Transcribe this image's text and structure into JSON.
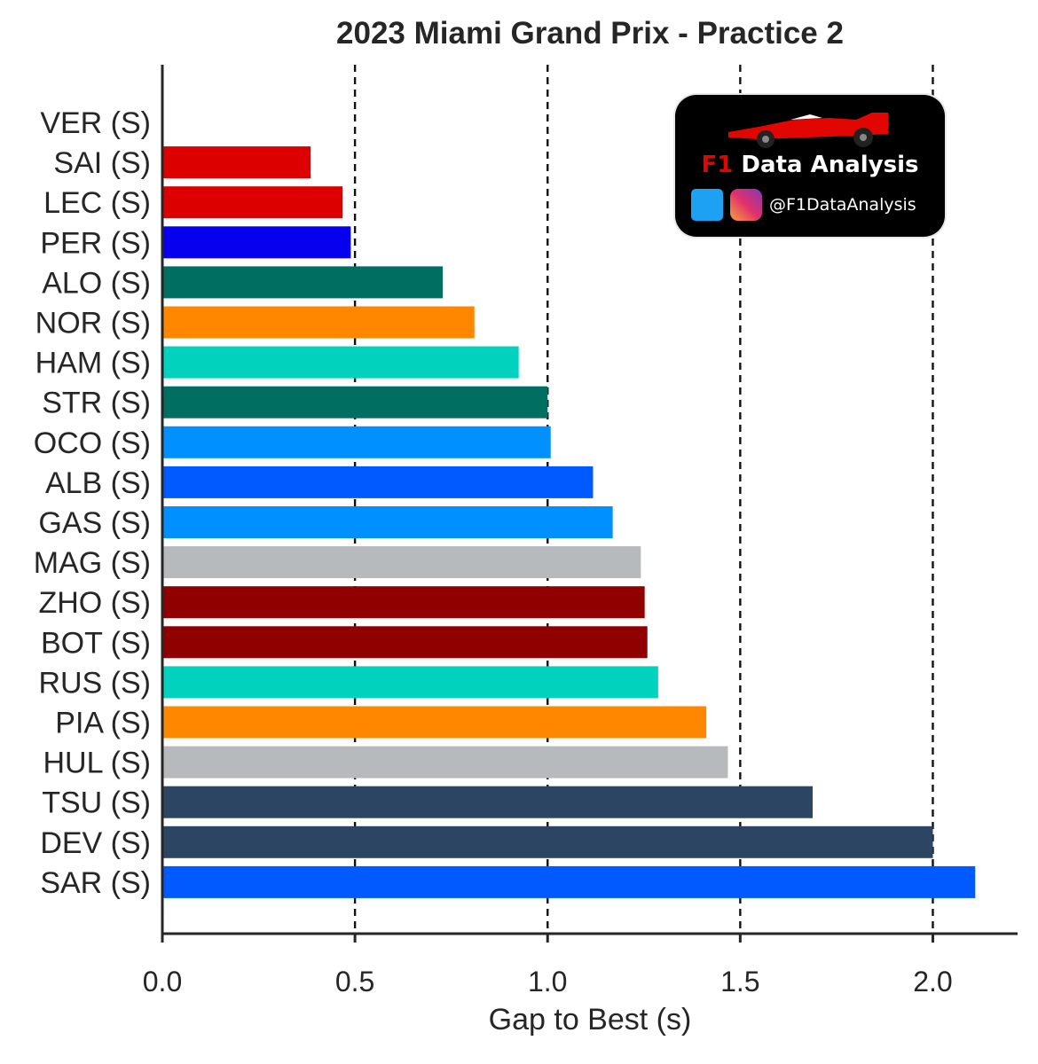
{
  "chart_data": {
    "type": "bar",
    "orientation": "horizontal",
    "title": "2023 Miami Grand Prix - Practice 2",
    "xlabel": "Gap to Best (s)",
    "ylabel": "",
    "xlim": [
      0,
      2.22
    ],
    "xticks": [
      "0.0",
      "0.5",
      "1.0",
      "1.5",
      "2.0"
    ],
    "xtick_values": [
      0.0,
      0.5,
      1.0,
      1.5,
      2.0
    ],
    "grid": "vertical dashed lines at 0.5, 1.0, 1.5, 2.0",
    "categories": [
      "VER (S)",
      "SAI (S)",
      "LEC (S)",
      "PER (S)",
      "ALO (S)",
      "NOR (S)",
      "HAM (S)",
      "STR (S)",
      "OCO (S)",
      "ALB (S)",
      "GAS (S)",
      "MAG (S)",
      "ZHO (S)",
      "BOT (S)",
      "RUS (S)",
      "PIA (S)",
      "HUL (S)",
      "TSU (S)",
      "DEV (S)",
      "SAR (S)"
    ],
    "values": [
      0.0,
      0.385,
      0.468,
      0.489,
      0.728,
      0.81,
      0.925,
      1.0,
      1.008,
      1.118,
      1.169,
      1.242,
      1.252,
      1.259,
      1.287,
      1.412,
      1.468,
      1.688,
      2.0,
      2.11
    ],
    "colors": [
      "#0600ef",
      "#dc0000",
      "#dc0000",
      "#0600ef",
      "#006f62",
      "#ff8700",
      "#00d2be",
      "#006f62",
      "#0090ff",
      "#005aff",
      "#0090ff",
      "#b6babd",
      "#900000",
      "#900000",
      "#00d2be",
      "#ff8700",
      "#b6babd",
      "#2b4562",
      "#2b4562",
      "#005aff"
    ]
  },
  "watermark": {
    "brand_prefix": "F1",
    "brand_rest": " Data Analysis",
    "handle": "@F1DataAnalysis",
    "icons": [
      "f1-car-icon",
      "twitter-icon",
      "instagram-icon"
    ]
  }
}
